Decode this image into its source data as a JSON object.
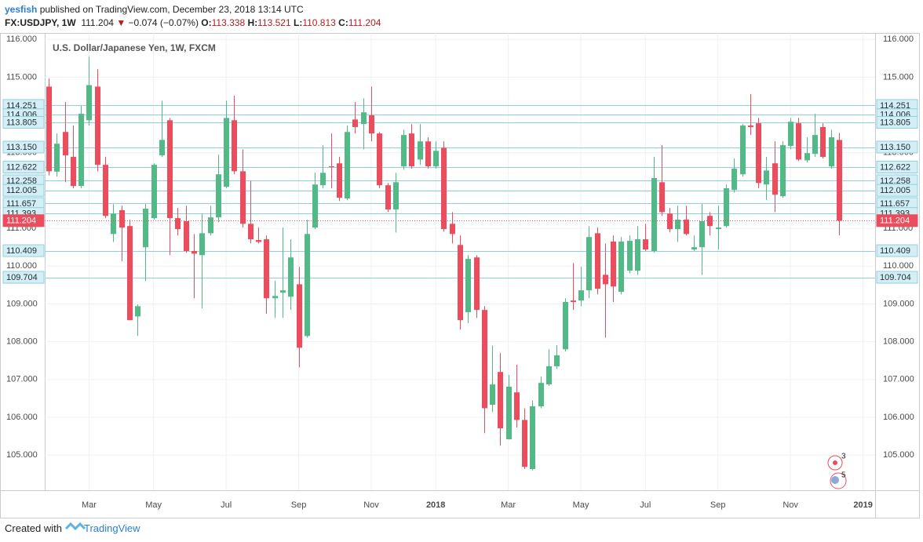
{
  "header": {
    "author": "yesfish",
    "published": "published on TradingView.com, December 23, 2018 13:14 UTC",
    "symbol": "FX:USDJPY, 1W",
    "change": "−0.074 (−0.07%)",
    "open_label": "O:",
    "high_label": "H:",
    "low_label": "L:",
    "close_label": "C:"
  },
  "footer": {
    "created": "Created with",
    "brand": "TradingView",
    "badges": [
      "3",
      "5"
    ]
  },
  "chart_data": {
    "type": "candlestick",
    "title": "U.S. Dollar/Japanese Yen, 1W, FXCM",
    "categories": [
      null,
      null,
      null,
      null,
      null,
      "Mar",
      null,
      null,
      null,
      null,
      null,
      null,
      null,
      "May",
      null,
      null,
      null,
      null,
      null,
      null,
      null,
      null,
      "Jul",
      null,
      null,
      null,
      null,
      null,
      null,
      null,
      null,
      "Sep",
      null,
      null,
      null,
      null,
      null,
      null,
      null,
      null,
      "Nov",
      null,
      null,
      null,
      null,
      null,
      null,
      null,
      "2018",
      null,
      null,
      null,
      null,
      null,
      null,
      null,
      null,
      "Mar",
      null,
      null,
      null,
      null,
      null,
      null,
      null,
      null,
      "May",
      null,
      null,
      null,
      null,
      null,
      null,
      null,
      "Jul",
      null,
      null,
      null,
      null,
      null,
      null,
      null,
      null,
      "Sep",
      null,
      null,
      null,
      null,
      null,
      null,
      null,
      null,
      "Nov",
      null,
      null,
      null,
      null,
      null,
      null,
      null,
      null,
      "2019",
      null
    ],
    "open": [
      114.75,
      112.5,
      113.55,
      112.89,
      112.12,
      113.86,
      114.75,
      112.68,
      110.85,
      111.48,
      111.06,
      108.67,
      110.5,
      111.27,
      112.93,
      113.86,
      111.27,
      111.19,
      110.4,
      110.29,
      110.87,
      111.29,
      112.1,
      113.86,
      112.51,
      111.12,
      110.69,
      110.71,
      109.15,
      109.3,
      109.19,
      109.52,
      108.15,
      111.02,
      112.14,
      112.64,
      112.72,
      111.79,
      113.88,
      113.76,
      113.99,
      113.51,
      112.14,
      111.5,
      112.64,
      113.51,
      112.82,
      113.3,
      112.64,
      113.13,
      111.12,
      110.56,
      108.78,
      110.23,
      108.84,
      106.33,
      107.2,
      105.42,
      106.66,
      105.93,
      104.63,
      106.29,
      106.87,
      107.35,
      107.8,
      109.09,
      109.09,
      109.36,
      110.87,
      109.77,
      110.65,
      109.32,
      109.88,
      109.88,
      110.71,
      110.4,
      112.22,
      111.39,
      110.98,
      111.23,
      110.44,
      110.5,
      111.33,
      110.98,
      111.06,
      112.02,
      112.43,
      113.72,
      113.78,
      112.16,
      112.72,
      111.85,
      113.18,
      113.78,
      112.8,
      112.97,
      113.68,
      112.64,
      113.338,
      null,
      null,
      null,
      null
    ],
    "high": [
      114.96,
      113.51,
      114.34,
      113.72,
      114.24,
      115.54,
      115.21,
      112.89,
      111.64,
      111.6,
      111.23,
      108.99,
      111.64,
      112.72,
      114.38,
      113.92,
      111.54,
      111.6,
      110.85,
      111.39,
      111.6,
      112.95,
      114.38,
      114.51,
      113.09,
      112.26,
      111.02,
      110.81,
      109.61,
      111.02,
      110.71,
      109.98,
      111.23,
      112.47,
      113.2,
      113.51,
      112.89,
      113.72,
      114.34,
      114.44,
      114.75,
      113.55,
      112.2,
      112.47,
      113.61,
      113.76,
      113.76,
      113.41,
      113.3,
      113.3,
      111.43,
      110.81,
      110.29,
      110.29,
      108.94,
      107.9,
      107.7,
      107.12,
      107.39,
      106.24,
      106.45,
      107.08,
      107.8,
      107.91,
      109.15,
      110.08,
      109.98,
      111.06,
      111.02,
      110.6,
      110.81,
      110.77,
      110.81,
      111.06,
      111.12,
      112.89,
      113.2,
      111.54,
      111.6,
      111.6,
      110.81,
      111.64,
      111.43,
      111.6,
      112.16,
      112.85,
      113.76,
      114.55,
      113.92,
      112.89,
      113.3,
      113.3,
      113.92,
      113.92,
      113.41,
      114.03,
      113.78,
      113.61,
      113.521,
      null,
      null,
      null,
      null
    ],
    "low": [
      112.4,
      112.37,
      112.22,
      112.06,
      112.06,
      113.72,
      112.51,
      111.27,
      110.64,
      110.13,
      108.57,
      108.15,
      109.61,
      111.23,
      112.89,
      110.29,
      110.81,
      110.35,
      109.15,
      108.88,
      110.81,
      111.16,
      112.06,
      112.43,
      111.02,
      110.6,
      110.6,
      108.74,
      108.63,
      108.63,
      108.84,
      107.32,
      108.11,
      110.98,
      112.06,
      112.06,
      111.72,
      111.75,
      113.51,
      113.09,
      113.3,
      112.06,
      111.43,
      110.89,
      112.55,
      112.58,
      112.68,
      112.58,
      112.58,
      110.91,
      110.6,
      108.32,
      108.49,
      108.63,
      105.58,
      106.14,
      105.25,
      105.41,
      105.73,
      104.63,
      104.6,
      106.24,
      106.83,
      107.28,
      107.74,
      108.84,
      108.94,
      109.15,
      109.25,
      108.11,
      109.05,
      109.25,
      109.81,
      109.77,
      110.4,
      110.35,
      111.33,
      110.89,
      110.64,
      110.81,
      110.4,
      109.77,
      110.81,
      110.44,
      111.02,
      111.95,
      112.37,
      113.47,
      112.06,
      111.75,
      111.43,
      111.81,
      113.09,
      112.78,
      112.74,
      112.89,
      112.85,
      112.58,
      110.813,
      null,
      null,
      null,
      null
    ],
    "close": [
      112.51,
      113.24,
      112.93,
      112.12,
      114.03,
      114.79,
      112.68,
      111.33,
      111.39,
      111.02,
      108.57,
      108.94,
      111.52,
      112.68,
      113.34,
      111.27,
      110.98,
      110.4,
      110.33,
      110.87,
      111.29,
      112.43,
      113.92,
      112.51,
      111.12,
      110.71,
      110.64,
      109.15,
      109.21,
      109.36,
      110.23,
      107.84,
      110.85,
      112.16,
      112.47,
      112.62,
      111.81,
      113.55,
      113.68,
      114.07,
      113.51,
      112.14,
      111.5,
      112.22,
      113.47,
      112.64,
      113.3,
      112.64,
      113.05,
      110.98,
      110.85,
      108.57,
      110.19,
      108.84,
      106.24,
      106.87,
      105.71,
      106.81,
      105.93,
      104.69,
      106.29,
      106.91,
      107.35,
      107.64,
      109.05,
      109.05,
      109.36,
      110.77,
      109.4,
      109.52,
      109.46,
      110.65,
      110.67,
      110.71,
      110.44,
      112.33,
      111.43,
      110.98,
      111.23,
      110.85,
      110.5,
      111.19,
      111.06,
      111.02,
      112.06,
      112.58,
      113.72,
      113.68,
      112.2,
      112.53,
      111.89,
      113.2,
      113.82,
      112.82,
      112.99,
      113.47,
      112.89,
      113.41,
      111.204,
      null,
      null,
      null,
      null
    ],
    "up_color": "#53b987",
    "down_color": "#eb4d5c",
    "level_color": "#8fd0de",
    "levels": [
      114.251,
      {
        "value": 114.006,
        "label": "114.006"
      },
      113.805,
      {
        "value": 113.15,
        "label": "113.150"
      },
      112.622,
      112.258,
      112.005,
      111.657,
      111.393,
      110.409,
      109.704
    ],
    "ylim": [
      104.07,
      116.17
    ],
    "yticks": [
      {
        "value": 105,
        "label": "105.000"
      },
      {
        "value": 106,
        "label": "106.000"
      },
      {
        "value": 107,
        "label": "107.000"
      },
      {
        "value": 108,
        "label": "108.000"
      },
      {
        "value": 109,
        "label": "109.000"
      },
      {
        "value": 110,
        "label": "110.000"
      },
      {
        "value": 111,
        "label": "111.000"
      },
      {
        "value": 112,
        "label": "112.000"
      },
      {
        "value": 113,
        "label": "113.000"
      },
      {
        "value": 114,
        "label": "114.000"
      },
      {
        "value": 115,
        "label": "115.000"
      },
      {
        "value": 116,
        "label": "116.000"
      }
    ],
    "grid": true
  }
}
